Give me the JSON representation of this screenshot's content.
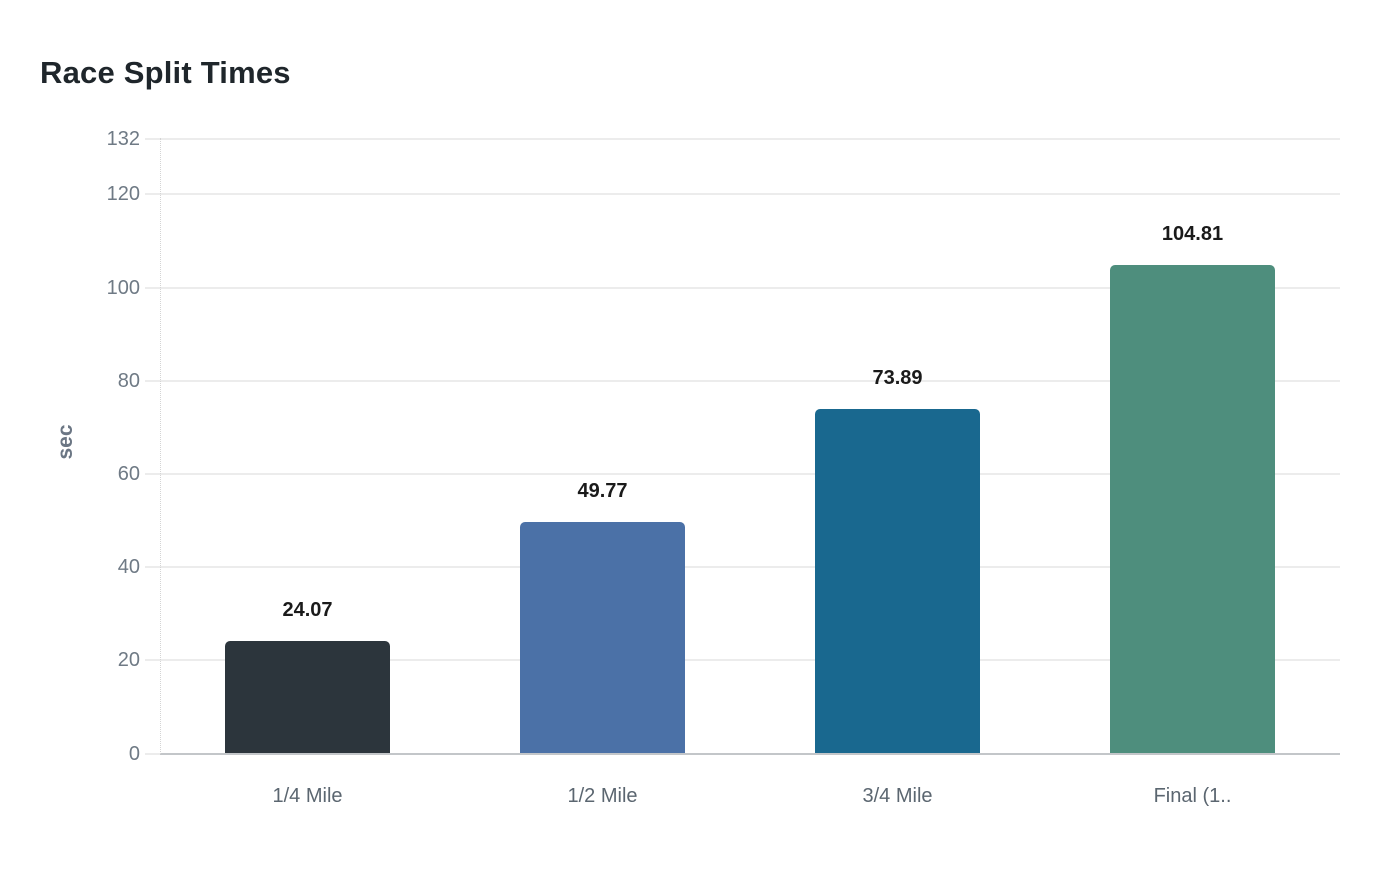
{
  "page": {
    "background": "#ffffff"
  },
  "chart": {
    "title": "Race Split Times",
    "y_axis_label": "sec"
  },
  "chart_data": {
    "type": "bar",
    "title": "Race Split Times",
    "categories": [
      "1/4 Mile",
      "1/2 Mile",
      "3/4 Mile",
      "Final (1.."
    ],
    "values": [
      24.07,
      49.77,
      73.89,
      104.81
    ],
    "value_labels": [
      "24.07",
      "49.77",
      "73.89",
      "104.81"
    ],
    "bar_colors": [
      "#2c353c",
      "#4b71a7",
      "#19688f",
      "#4e8e7d"
    ],
    "xlabel": "",
    "ylabel": "sec",
    "ylim": [
      0,
      132
    ],
    "yticks": [
      0,
      20,
      40,
      60,
      80,
      100,
      120,
      132
    ],
    "grid": true,
    "legend": false
  },
  "colors": {
    "title_text": "#1f262b",
    "y_tick_text": "#6f7a85",
    "x_label_text": "#5b6670",
    "value_label_text": "#1a1a1a",
    "gridline": "#ececec",
    "baseline": "#c3c6c9",
    "axis_dotted": "#d4d4d4"
  }
}
